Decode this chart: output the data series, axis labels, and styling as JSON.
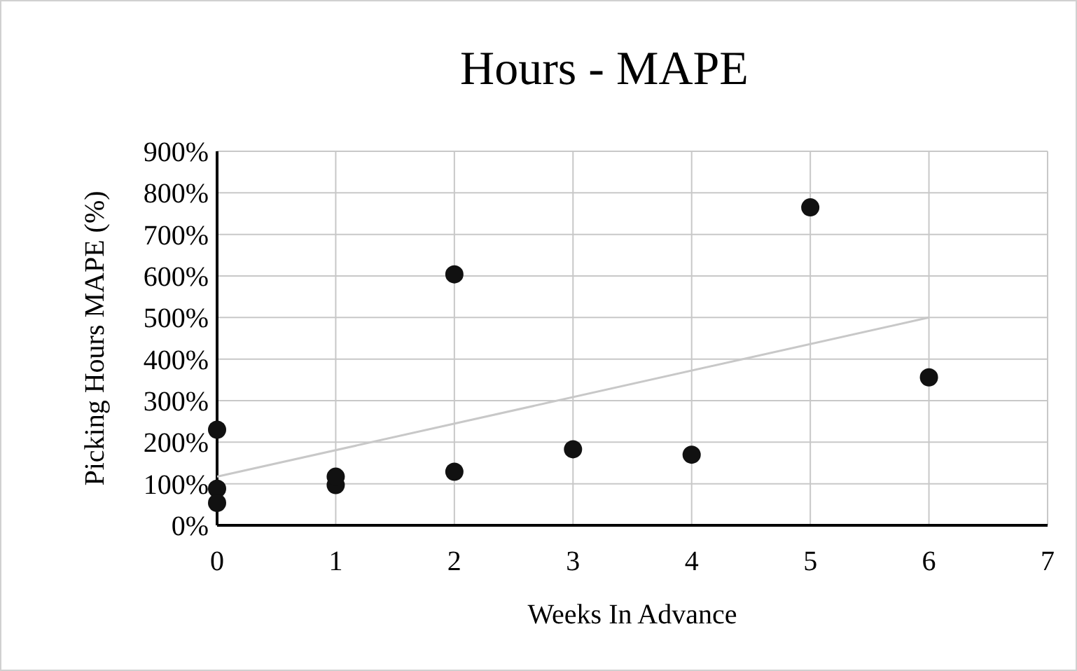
{
  "chart_data": {
    "type": "scatter",
    "title": "Hours - MAPE",
    "xlabel": "Weeks In Advance",
    "ylabel": "Picking Hours MAPE (%)",
    "xlim": [
      0,
      7
    ],
    "xticks": [
      0,
      1,
      2,
      3,
      4,
      5,
      6,
      7
    ],
    "ylim": [
      0,
      900
    ],
    "yticks": [
      {
        "value": 0,
        "label": "0%"
      },
      {
        "value": 100,
        "label": "100%"
      },
      {
        "value": 200,
        "label": "200%"
      },
      {
        "value": 300,
        "label": "300%"
      },
      {
        "value": 400,
        "label": "400%"
      },
      {
        "value": 500,
        "label": "500%"
      },
      {
        "value": 600,
        "label": "600%"
      },
      {
        "value": 700,
        "label": "700%"
      },
      {
        "value": 800,
        "label": "800%"
      },
      {
        "value": 900,
        "label": "900%"
      }
    ],
    "grid": true,
    "series": [
      {
        "marker": "circle",
        "color": "#111111",
        "x": [
          0,
          0,
          0,
          1,
          1,
          2,
          2,
          3,
          4,
          5,
          6
        ],
        "values": [
          230,
          88,
          54,
          97,
          117,
          604,
          129,
          183,
          170,
          765,
          356
        ]
      },
      {
        "type": "line",
        "color": "#c8c8c8",
        "x": [
          0,
          6
        ],
        "values": [
          117,
          500
        ]
      }
    ]
  }
}
